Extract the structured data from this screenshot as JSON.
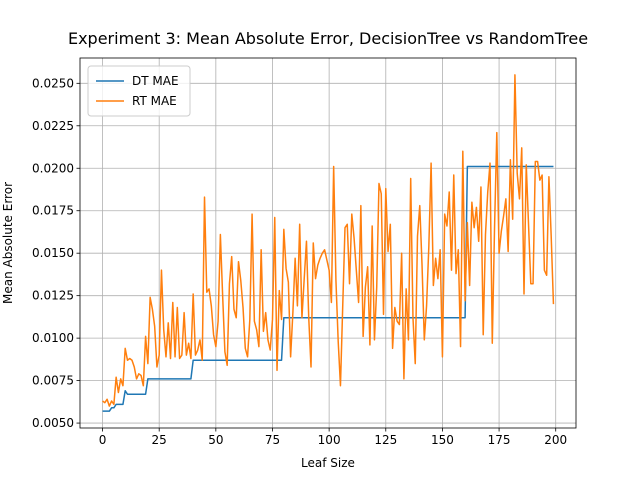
{
  "chart_data": {
    "type": "line",
    "title": "Experiment 3: Mean Absolute Error, DecisionTree vs RandomTree",
    "xlabel": "Leaf Size",
    "ylabel": "Mean Absolute Error",
    "x": [
      0,
      1,
      2,
      3,
      4,
      5,
      6,
      7,
      8,
      9,
      10,
      11,
      12,
      13,
      14,
      15,
      16,
      17,
      18,
      19,
      20,
      21,
      22,
      23,
      24,
      25,
      26,
      27,
      28,
      29,
      30,
      31,
      32,
      33,
      34,
      35,
      36,
      37,
      38,
      39,
      40,
      41,
      42,
      43,
      44,
      45,
      46,
      47,
      48,
      49,
      50,
      51,
      52,
      53,
      54,
      55,
      56,
      57,
      58,
      59,
      60,
      61,
      62,
      63,
      64,
      65,
      66,
      67,
      68,
      69,
      70,
      71,
      72,
      73,
      74,
      75,
      76,
      77,
      78,
      79,
      80,
      81,
      82,
      83,
      84,
      85,
      86,
      87,
      88,
      89,
      90,
      91,
      92,
      93,
      94,
      95,
      96,
      97,
      98,
      99,
      100,
      101,
      102,
      103,
      104,
      105,
      106,
      107,
      108,
      109,
      110,
      111,
      112,
      113,
      114,
      115,
      116,
      117,
      118,
      119,
      120,
      121,
      122,
      123,
      124,
      125,
      126,
      127,
      128,
      129,
      130,
      131,
      132,
      133,
      134,
      135,
      136,
      137,
      138,
      139,
      140,
      141,
      142,
      143,
      144,
      145,
      146,
      147,
      148,
      149,
      150,
      151,
      152,
      153,
      154,
      155,
      156,
      157,
      158,
      159,
      160,
      161,
      162,
      163,
      164,
      165,
      166,
      167,
      168,
      169,
      170,
      171,
      172,
      173,
      174,
      175,
      176,
      177,
      178,
      179,
      180,
      181,
      182,
      183,
      184,
      185,
      186,
      187,
      188,
      189,
      190,
      191,
      192,
      193,
      194,
      195,
      196,
      197,
      198,
      199
    ],
    "series": [
      {
        "name": "DT MAE",
        "color": "#1f77b4",
        "values": [
          0.0057,
          0.0057,
          0.0057,
          0.0057,
          0.0059,
          0.0059,
          0.0061,
          0.0061,
          0.0061,
          0.0061,
          0.0069,
          0.0067,
          0.0067,
          0.0067,
          0.0067,
          0.0067,
          0.0067,
          0.0067,
          0.0067,
          0.0067,
          0.0076,
          0.0076,
          0.0076,
          0.0076,
          0.0076,
          0.0076,
          0.0076,
          0.0076,
          0.0076,
          0.0076,
          0.0076,
          0.0076,
          0.0076,
          0.0076,
          0.0076,
          0.0076,
          0.0076,
          0.0076,
          0.0076,
          0.0076,
          0.0087,
          0.0087,
          0.0087,
          0.0087,
          0.0087,
          0.0087,
          0.0087,
          0.0087,
          0.0087,
          0.0087,
          0.0087,
          0.0087,
          0.0087,
          0.0087,
          0.0087,
          0.0087,
          0.0087,
          0.0087,
          0.0087,
          0.0087,
          0.0087,
          0.0087,
          0.0087,
          0.0087,
          0.0087,
          0.0087,
          0.0087,
          0.0087,
          0.0087,
          0.0087,
          0.0087,
          0.0087,
          0.0087,
          0.0087,
          0.0087,
          0.0087,
          0.0087,
          0.0087,
          0.0087,
          0.0087,
          0.0112,
          0.0112,
          0.0112,
          0.0112,
          0.0112,
          0.0112,
          0.0112,
          0.0112,
          0.0112,
          0.0112,
          0.0112,
          0.0112,
          0.0112,
          0.0112,
          0.0112,
          0.0112,
          0.0112,
          0.0112,
          0.0112,
          0.0112,
          0.0112,
          0.0112,
          0.0112,
          0.0112,
          0.0112,
          0.0112,
          0.0112,
          0.0112,
          0.0112,
          0.0112,
          0.0112,
          0.0112,
          0.0112,
          0.0112,
          0.0112,
          0.0112,
          0.0112,
          0.0112,
          0.0112,
          0.0112,
          0.0112,
          0.0112,
          0.0112,
          0.0112,
          0.0112,
          0.0112,
          0.0112,
          0.0112,
          0.0112,
          0.0112,
          0.0112,
          0.0112,
          0.0112,
          0.0112,
          0.0112,
          0.0112,
          0.0112,
          0.0112,
          0.0112,
          0.0112,
          0.0112,
          0.0112,
          0.0112,
          0.0112,
          0.0112,
          0.0112,
          0.0112,
          0.0112,
          0.0112,
          0.0112,
          0.0112,
          0.0112,
          0.0112,
          0.0112,
          0.0112,
          0.0112,
          0.0112,
          0.0112,
          0.0112,
          0.0112,
          0.0112,
          0.0201,
          0.0201,
          0.0201,
          0.0201,
          0.0201,
          0.0201,
          0.0201,
          0.0201,
          0.0201,
          0.0201,
          0.0201,
          0.0201,
          0.0201,
          0.0201,
          0.0201,
          0.0201,
          0.0201,
          0.0201,
          0.0201,
          0.0201,
          0.0201,
          0.0201,
          0.0201,
          0.0201,
          0.0201,
          0.0201,
          0.0201,
          0.0201,
          0.0201,
          0.0201,
          0.0201,
          0.0201,
          0.0201,
          0.0201,
          0.0201,
          0.0201,
          0.0201,
          0.0201,
          0.0201
        ]
      },
      {
        "name": "RT MAE",
        "color": "#ff7f0e",
        "values": [
          0.0063,
          0.0062,
          0.0064,
          0.006,
          0.0063,
          0.0061,
          0.0077,
          0.0068,
          0.0076,
          0.0072,
          0.0094,
          0.0087,
          0.0088,
          0.0087,
          0.0083,
          0.0076,
          0.0079,
          0.0078,
          0.0072,
          0.0101,
          0.0085,
          0.0124,
          0.0117,
          0.0107,
          0.0083,
          0.009,
          0.014,
          0.0105,
          0.0089,
          0.0109,
          0.0088,
          0.0121,
          0.0089,
          0.0118,
          0.0088,
          0.009,
          0.0115,
          0.009,
          0.0097,
          0.0088,
          0.0126,
          0.009,
          0.0093,
          0.0099,
          0.0087,
          0.0183,
          0.0127,
          0.0129,
          0.0119,
          0.0102,
          0.0095,
          0.011,
          0.0161,
          0.0125,
          0.0092,
          0.0084,
          0.0132,
          0.0148,
          0.0117,
          0.0112,
          0.0145,
          0.0134,
          0.0118,
          0.0094,
          0.0089,
          0.0111,
          0.0173,
          0.011,
          0.0105,
          0.0095,
          0.0152,
          0.0104,
          0.0115,
          0.0099,
          0.0093,
          0.0111,
          0.0171,
          0.0081,
          0.0128,
          0.0111,
          0.0164,
          0.0141,
          0.0133,
          0.0089,
          0.0115,
          0.0147,
          0.0119,
          0.0167,
          0.0112,
          0.0135,
          0.0157,
          0.0112,
          0.0083,
          0.0156,
          0.0135,
          0.0143,
          0.0147,
          0.015,
          0.0152,
          0.0146,
          0.014,
          0.0121,
          0.0201,
          0.0134,
          0.0098,
          0.0072,
          0.0119,
          0.0165,
          0.0167,
          0.0132,
          0.0173,
          0.0159,
          0.014,
          0.0121,
          0.0178,
          0.0101,
          0.013,
          0.0142,
          0.0096,
          0.0166,
          0.0099,
          0.013,
          0.0191,
          0.0185,
          0.0114,
          0.0188,
          0.0151,
          0.0167,
          0.0094,
          0.0118,
          0.011,
          0.0108,
          0.015,
          0.0076,
          0.0129,
          0.0099,
          0.0194,
          0.0112,
          0.0085,
          0.016,
          0.0178,
          0.0143,
          0.0099,
          0.0119,
          0.0154,
          0.0203,
          0.0131,
          0.0147,
          0.0135,
          0.0152,
          0.0089,
          0.0173,
          0.0166,
          0.0186,
          0.014,
          0.0196,
          0.0138,
          0.0152,
          0.0095,
          0.021,
          0.0122,
          0.0168,
          0.0131,
          0.018,
          0.0165,
          0.0177,
          0.0157,
          0.0189,
          0.0102,
          0.0161,
          0.0186,
          0.0203,
          0.0097,
          0.0165,
          0.0221,
          0.015,
          0.0163,
          0.0172,
          0.0182,
          0.0151,
          0.0205,
          0.017,
          0.0255,
          0.0197,
          0.0182,
          0.0212,
          0.0126,
          0.0202,
          0.0167,
          0.0132,
          0.0132,
          0.0204,
          0.0204,
          0.0193,
          0.0196,
          0.014,
          0.0137,
          0.0195,
          0.016,
          0.012
        ]
      }
    ],
    "xlim": [
      -9.95,
      208.95
    ],
    "xticks": [
      0,
      25,
      50,
      75,
      100,
      125,
      150,
      175,
      200
    ],
    "ylim": [
      0.00471,
      0.02649
    ],
    "yticks": [
      {
        "value": 0.005,
        "label": "0.0050"
      },
      {
        "value": 0.0075,
        "label": "0.0075"
      },
      {
        "value": 0.01,
        "label": "0.0100"
      },
      {
        "value": 0.0125,
        "label": "0.0125"
      },
      {
        "value": 0.015,
        "label": "0.0150"
      },
      {
        "value": 0.0175,
        "label": "0.0175"
      },
      {
        "value": 0.02,
        "label": "0.0200"
      },
      {
        "value": 0.0225,
        "label": "0.0225"
      },
      {
        "value": 0.025,
        "label": "0.0250"
      }
    ],
    "grid": true,
    "legend": "upper-left"
  }
}
